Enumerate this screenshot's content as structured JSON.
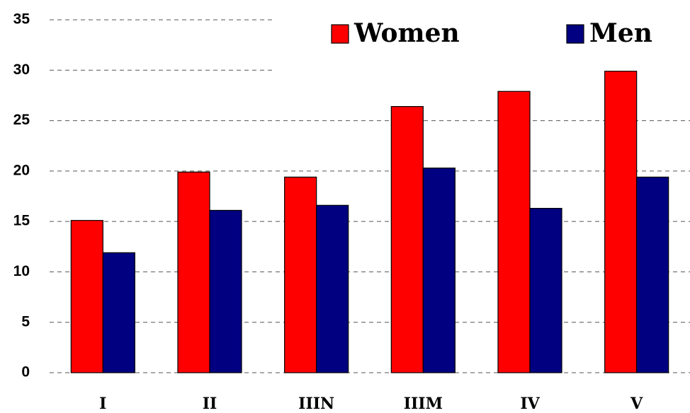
{
  "chart_data": {
    "type": "bar",
    "categories": [
      "I",
      "II",
      "IIIN",
      "IIIM",
      "IV",
      "V"
    ],
    "series": [
      {
        "name": "Women",
        "color": "#ff0000",
        "values": [
          15.1,
          19.9,
          19.4,
          26.4,
          27.9,
          29.9
        ]
      },
      {
        "name": "Men",
        "color": "#000080",
        "values": [
          11.9,
          16.1,
          16.6,
          20.3,
          16.3,
          19.4
        ]
      }
    ],
    "ylim": [
      0,
      35
    ],
    "yticks": [
      0,
      5,
      10,
      15,
      20,
      25,
      30,
      35
    ],
    "grid": true,
    "legend": "top-right"
  }
}
